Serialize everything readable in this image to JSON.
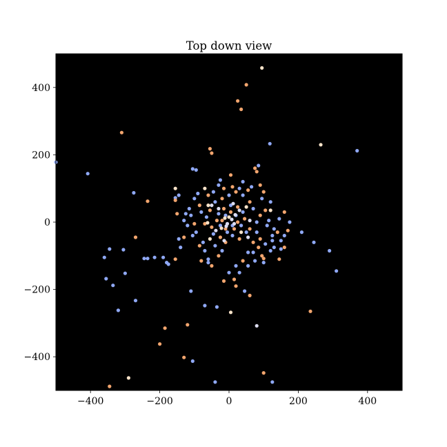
{
  "chart_data": {
    "type": "scatter",
    "title": "Top down view",
    "xlabel": "",
    "ylabel": "",
    "xlim": [
      -500,
      500
    ],
    "ylim": [
      -500,
      500
    ],
    "xticks": [
      -400,
      -200,
      0,
      200,
      400
    ],
    "yticks": [
      -400,
      -200,
      0,
      200,
      400
    ],
    "xtick_labels": [
      "−400",
      "−200",
      "0",
      "200",
      "400"
    ],
    "ytick_labels": [
      "−400",
      "−200",
      "0",
      "200",
      "400"
    ],
    "grid": false,
    "legend": "none",
    "background": "#000000",
    "colors": {
      "blue": "#8fa8f5",
      "orange": "#f2a56e",
      "light": "#dcdcf0",
      "cream": "#f8e2c8"
    },
    "points": [
      [
        95,
        458,
        "cream"
      ],
      [
        50,
        408,
        "orange"
      ],
      [
        25,
        360,
        "orange"
      ],
      [
        35,
        335,
        "orange"
      ],
      [
        -310,
        266,
        "orange"
      ],
      [
        265,
        230,
        "cream"
      ],
      [
        370,
        212,
        "blue"
      ],
      [
        118,
        233,
        "blue"
      ],
      [
        -500,
        178,
        "blue"
      ],
      [
        -408,
        144,
        "blue"
      ],
      [
        -55,
        218,
        "orange"
      ],
      [
        -50,
        205,
        "orange"
      ],
      [
        -105,
        158,
        "blue"
      ],
      [
        -95,
        155,
        "blue"
      ],
      [
        85,
        168,
        "blue"
      ],
      [
        75,
        160,
        "orange"
      ],
      [
        -155,
        100,
        "cream"
      ],
      [
        -70,
        100,
        "cream"
      ],
      [
        -30,
        110,
        "blue"
      ],
      [
        40,
        120,
        "blue"
      ],
      [
        90,
        110,
        "orange"
      ],
      [
        -275,
        87,
        "blue"
      ],
      [
        -145,
        80,
        "blue"
      ],
      [
        -155,
        72,
        "blue"
      ],
      [
        -155,
        65,
        "orange"
      ],
      [
        -235,
        62,
        "orange"
      ],
      [
        -85,
        50,
        "orange"
      ],
      [
        -60,
        50,
        "cream"
      ],
      [
        105,
        35,
        "orange"
      ],
      [
        120,
        35,
        "cream"
      ],
      [
        175,
        0,
        "blue"
      ],
      [
        -110,
        20,
        "blue"
      ],
      [
        -120,
        -10,
        "blue"
      ],
      [
        -130,
        -45,
        "orange"
      ],
      [
        -145,
        -50,
        "blue"
      ],
      [
        -140,
        -75,
        "blue"
      ],
      [
        -270,
        -45,
        "orange"
      ],
      [
        -345,
        -80,
        "blue"
      ],
      [
        -305,
        -82,
        "blue"
      ],
      [
        -360,
        -105,
        "blue"
      ],
      [
        -245,
        -108,
        "blue"
      ],
      [
        -235,
        -108,
        "blue"
      ],
      [
        -215,
        -105,
        "blue"
      ],
      [
        -190,
        -105,
        "blue"
      ],
      [
        -180,
        -120,
        "blue"
      ],
      [
        -175,
        -125,
        "blue"
      ],
      [
        -155,
        -110,
        "orange"
      ],
      [
        -300,
        -152,
        "blue"
      ],
      [
        -355,
        -168,
        "blue"
      ],
      [
        -335,
        -188,
        "blue"
      ],
      [
        -270,
        -233,
        "blue"
      ],
      [
        -320,
        -262,
        "blue"
      ],
      [
        -110,
        -205,
        "blue"
      ],
      [
        -70,
        -248,
        "blue"
      ],
      [
        -35,
        -252,
        "blue"
      ],
      [
        5,
        -268,
        "cream"
      ],
      [
        45,
        -205,
        "blue"
      ],
      [
        60,
        -218,
        "orange"
      ],
      [
        -185,
        -315,
        "orange"
      ],
      [
        -200,
        -362,
        "orange"
      ],
      [
        -120,
        -305,
        "orange"
      ],
      [
        -130,
        -402,
        "orange"
      ],
      [
        -105,
        -413,
        "blue"
      ],
      [
        -290,
        -463,
        "cream"
      ],
      [
        -345,
        -488,
        "orange"
      ],
      [
        -40,
        -475,
        "blue"
      ],
      [
        80,
        -308,
        "light"
      ],
      [
        100,
        -448,
        "orange"
      ],
      [
        125,
        -475,
        "blue"
      ],
      [
        235,
        -265,
        "orange"
      ],
      [
        310,
        -145,
        "blue"
      ],
      [
        290,
        -85,
        "blue"
      ],
      [
        245,
        -60,
        "blue"
      ],
      [
        210,
        -30,
        "blue"
      ],
      [
        170,
        -25,
        "orange"
      ],
      [
        160,
        -75,
        "orange"
      ],
      [
        150,
        -80,
        "blue"
      ],
      [
        145,
        -110,
        "orange"
      ],
      [
        130,
        -75,
        "blue"
      ],
      [
        120,
        -85,
        "blue"
      ],
      [
        100,
        -120,
        "blue"
      ],
      [
        100,
        -108,
        "orange"
      ],
      [
        70,
        -90,
        "blue"
      ],
      [
        90,
        -50,
        "orange"
      ],
      [
        55,
        -90,
        "blue"
      ],
      [
        40,
        -115,
        "orange"
      ],
      [
        20,
        -130,
        "blue"
      ],
      [
        0,
        -150,
        "blue"
      ],
      [
        30,
        -150,
        "blue"
      ],
      [
        20,
        -190,
        "orange"
      ],
      [
        -15,
        -175,
        "orange"
      ],
      [
        -60,
        -110,
        "blue"
      ],
      [
        -60,
        -120,
        "blue"
      ],
      [
        -80,
        -115,
        "orange"
      ],
      [
        -75,
        -60,
        "blue"
      ],
      [
        -95,
        -30,
        "blue"
      ],
      [
        -70,
        -5,
        "orange"
      ],
      [
        -40,
        -70,
        "blue"
      ],
      [
        -30,
        -100,
        "orange"
      ],
      [
        -20,
        -85,
        "blue"
      ],
      [
        -10,
        -60,
        "orange"
      ],
      [
        10,
        -40,
        "blue"
      ],
      [
        30,
        -50,
        "orange"
      ],
      [
        50,
        -30,
        "blue"
      ],
      [
        60,
        -20,
        "orange"
      ],
      [
        80,
        0,
        "blue"
      ],
      [
        90,
        20,
        "orange"
      ],
      [
        70,
        40,
        "blue"
      ],
      [
        60,
        60,
        "orange"
      ],
      [
        40,
        80,
        "blue"
      ],
      [
        20,
        90,
        "orange"
      ],
      [
        0,
        80,
        "blue"
      ],
      [
        -20,
        70,
        "orange"
      ],
      [
        -40,
        60,
        "blue"
      ],
      [
        -55,
        35,
        "orange"
      ],
      [
        -65,
        15,
        "blue"
      ],
      [
        -50,
        -15,
        "orange"
      ],
      [
        -45,
        -35,
        "blue"
      ],
      [
        -25,
        -45,
        "orange"
      ],
      [
        -5,
        -30,
        "blue"
      ],
      [
        15,
        -20,
        "orange"
      ],
      [
        35,
        -10,
        "blue"
      ],
      [
        45,
        10,
        "orange"
      ],
      [
        40,
        30,
        "blue"
      ],
      [
        25,
        45,
        "orange"
      ],
      [
        5,
        50,
        "blue"
      ],
      [
        -15,
        40,
        "orange"
      ],
      [
        -30,
        25,
        "blue"
      ],
      [
        -35,
        5,
        "orange"
      ],
      [
        -25,
        -10,
        "blue"
      ],
      [
        -10,
        -20,
        "orange"
      ],
      [
        10,
        -10,
        "blue"
      ],
      [
        25,
        0,
        "orange"
      ],
      [
        20,
        20,
        "blue"
      ],
      [
        5,
        30,
        "orange"
      ],
      [
        -10,
        20,
        "blue"
      ],
      [
        -20,
        5,
        "orange"
      ],
      [
        -5,
        -5,
        "light"
      ],
      [
        8,
        8,
        "light"
      ],
      [
        -12,
        12,
        "cream"
      ],
      [
        15,
        -5,
        "light"
      ],
      [
        0,
        15,
        "cream"
      ],
      [
        -8,
        -12,
        "light"
      ],
      [
        18,
        22,
        "light"
      ],
      [
        -22,
        -18,
        "cream"
      ],
      [
        30,
        35,
        "light"
      ],
      [
        -30,
        40,
        "light"
      ],
      [
        35,
        -30,
        "cream"
      ],
      [
        -38,
        -25,
        "light"
      ],
      [
        50,
        45,
        "cream"
      ],
      [
        -50,
        50,
        "light"
      ],
      [
        55,
        -45,
        "light"
      ],
      [
        -55,
        -50,
        "cream"
      ],
      [
        12,
        55,
        "light"
      ],
      [
        -14,
        -55,
        "light"
      ],
      [
        60,
        5,
        "light"
      ],
      [
        -62,
        -2,
        "cream"
      ],
      [
        110,
        -10,
        "blue"
      ],
      [
        115,
        5,
        "blue"
      ],
      [
        130,
        -20,
        "blue"
      ],
      [
        125,
        -40,
        "blue"
      ],
      [
        140,
        -30,
        "orange"
      ],
      [
        105,
        -65,
        "blue"
      ],
      [
        85,
        -75,
        "orange"
      ],
      [
        -100,
        70,
        "blue"
      ],
      [
        -90,
        85,
        "blue"
      ],
      [
        -45,
        90,
        "blue"
      ],
      [
        -15,
        100,
        "orange"
      ],
      [
        10,
        105,
        "orange"
      ],
      [
        30,
        100,
        "blue"
      ],
      [
        55,
        95,
        "orange"
      ],
      [
        95,
        70,
        "blue"
      ],
      [
        100,
        90,
        "orange"
      ],
      [
        120,
        60,
        "blue"
      ],
      [
        -115,
        40,
        "blue"
      ],
      [
        -125,
        25,
        "blue"
      ],
      [
        -100,
        -5,
        "orange"
      ],
      [
        -105,
        -40,
        "blue"
      ],
      [
        -85,
        -70,
        "orange"
      ],
      [
        -50,
        -130,
        "orange"
      ],
      [
        15,
        -170,
        "orange"
      ],
      [
        55,
        -130,
        "blue"
      ],
      [
        75,
        -115,
        "blue"
      ],
      [
        95,
        -100,
        "orange"
      ],
      [
        125,
        -55,
        "blue"
      ],
      [
        160,
        -40,
        "blue"
      ],
      [
        145,
        10,
        "blue"
      ],
      [
        80,
        -30,
        "blue"
      ],
      [
        70,
        -60,
        "orange"
      ],
      [
        -70,
        -85,
        "blue"
      ],
      [
        -60,
        80,
        "orange"
      ],
      [
        -80,
        30,
        "blue"
      ],
      [
        80,
        150,
        "orange"
      ],
      [
        65,
        105,
        "blue"
      ],
      [
        -25,
        125,
        "blue"
      ],
      [
        5,
        140,
        "orange"
      ],
      [
        -130,
        5,
        "blue"
      ],
      [
        -150,
        25,
        "orange"
      ],
      [
        150,
        -55,
        "blue"
      ],
      [
        160,
        30,
        "orange"
      ]
    ]
  }
}
